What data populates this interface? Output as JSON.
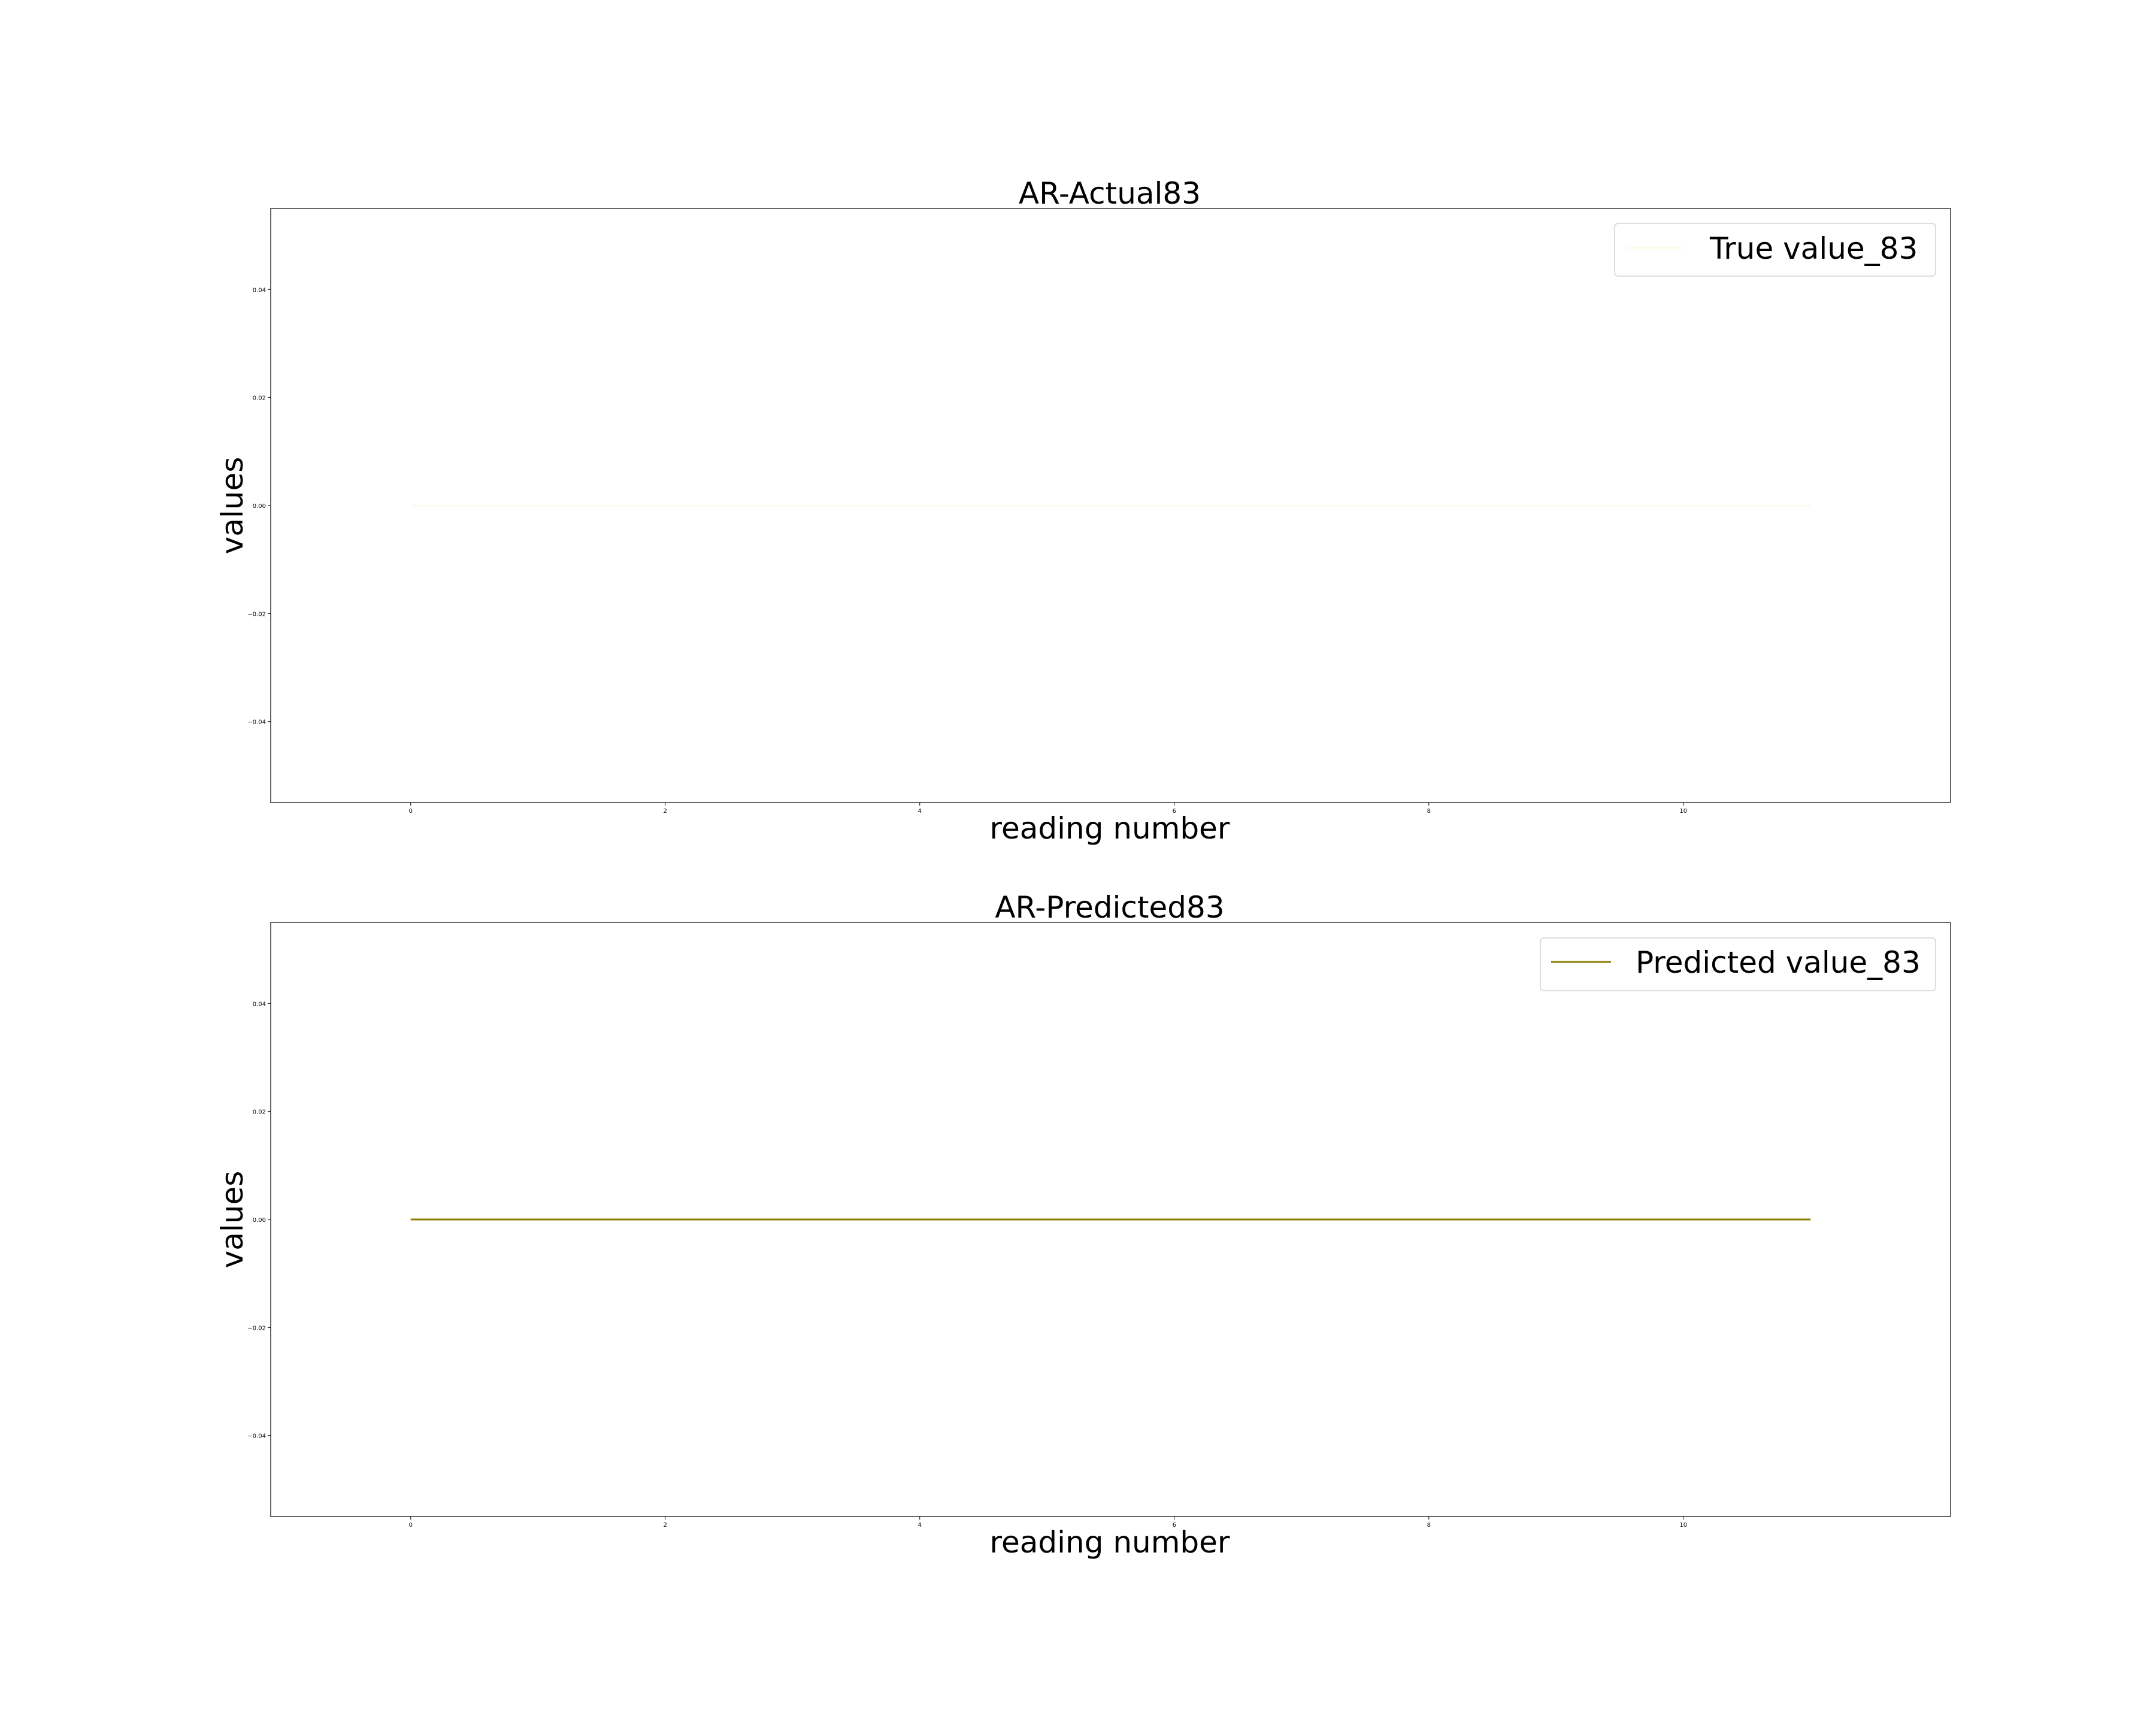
{
  "chart_data": [
    {
      "type": "line",
      "title": "AR-Actual83",
      "xlabel": "reading number",
      "ylabel": "values",
      "x": [
        0,
        1,
        2,
        3,
        4,
        5,
        6,
        7,
        8,
        9,
        10,
        11
      ],
      "series": [
        {
          "name": "True value_83",
          "values": [
            0,
            0,
            0,
            0,
            0,
            0,
            0,
            0,
            0,
            0,
            0,
            0
          ],
          "color": "#fdfbe8"
        }
      ],
      "xlim": [
        -1.1,
        12.1
      ],
      "ylim": [
        -0.055,
        0.055
      ],
      "xticks": [
        0,
        2,
        4,
        6,
        8,
        10
      ],
      "yticks": [
        -0.04,
        -0.02,
        0.0,
        0.02,
        0.04
      ],
      "xtick_labels": [
        "0",
        "2",
        "4",
        "6",
        "8",
        "10"
      ],
      "ytick_labels": [
        "−0.04",
        "−0.02",
        "0.00",
        "0.02",
        "0.04"
      ],
      "grid": false,
      "legend_position": "top-right"
    },
    {
      "type": "line",
      "title": "AR-Predicted83",
      "xlabel": "reading number",
      "ylabel": "values",
      "x": [
        0,
        1,
        2,
        3,
        4,
        5,
        6,
        7,
        8,
        9,
        10,
        11
      ],
      "series": [
        {
          "name": "Predicted value_83",
          "values": [
            0,
            0,
            0,
            0,
            0,
            0,
            0,
            0,
            0,
            0,
            0,
            0
          ],
          "color": "#8b7d00"
        }
      ],
      "xlim": [
        -1.1,
        12.1
      ],
      "ylim": [
        -0.055,
        0.055
      ],
      "xticks": [
        0,
        2,
        4,
        6,
        8,
        10
      ],
      "yticks": [
        -0.04,
        -0.02,
        0.0,
        0.02,
        0.04
      ],
      "xtick_labels": [
        "0",
        "2",
        "4",
        "6",
        "8",
        "10"
      ],
      "ytick_labels": [
        "−0.04",
        "−0.02",
        "0.00",
        "0.02",
        "0.04"
      ],
      "grid": false,
      "legend_position": "top-right"
    }
  ]
}
